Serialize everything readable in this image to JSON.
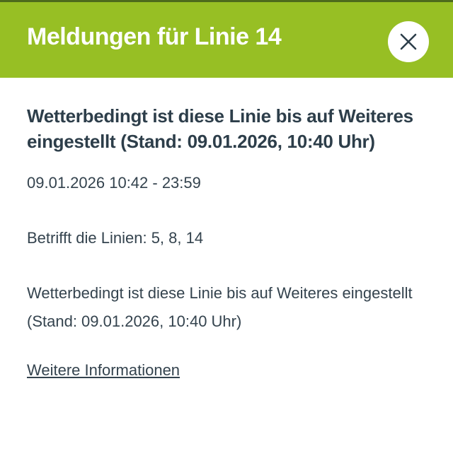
{
  "header": {
    "title": "Meldungen für Linie 14",
    "close_icon": "close-icon",
    "color": "#97bf24"
  },
  "message": {
    "heading": "Wetterbedingt ist diese Linie bis auf Weiteres eingestellt (Stand: 09.01.2026, 10:40 Uhr)",
    "validity": "09.01.2026 10:42 - 23:59",
    "affected_lines": "Betrifft die Linien: 5, 8, 14",
    "description": "Wetterbedingt ist diese Linie bis auf Weiteres eingestellt (Stand: 09.01.2026, 10:40 Uhr)",
    "more_info_link": "Weitere Informationen"
  }
}
